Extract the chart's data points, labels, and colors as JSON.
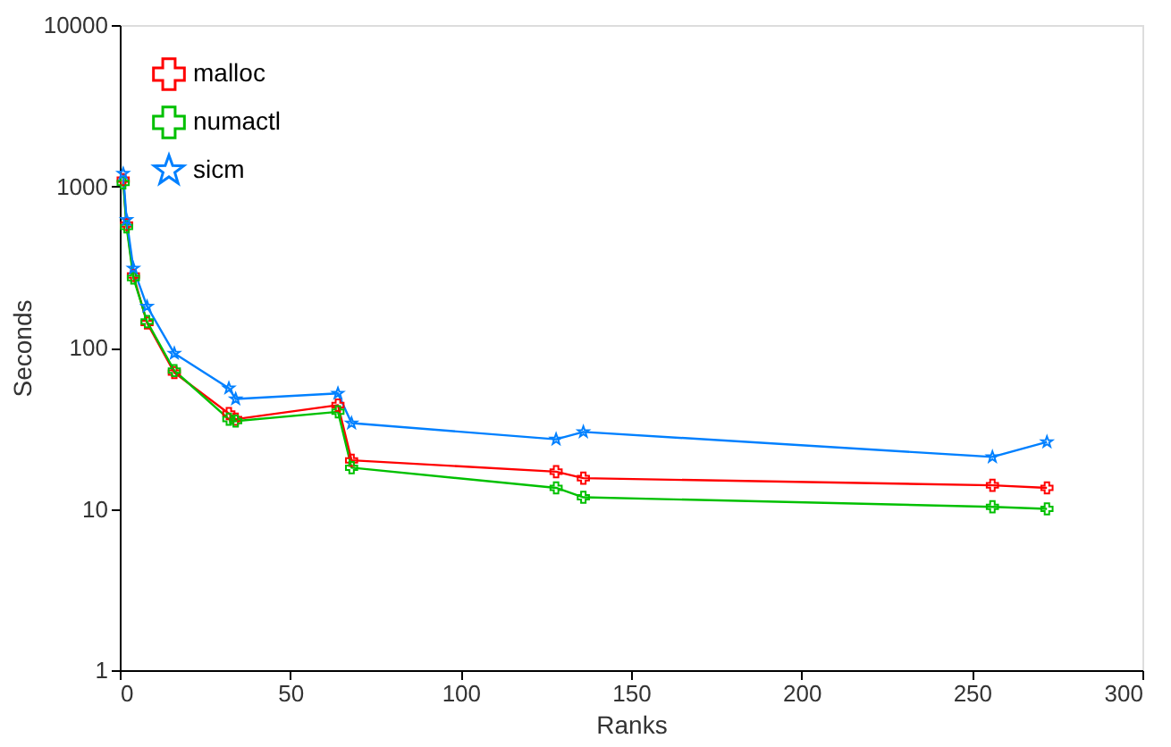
{
  "chart_data": {
    "type": "line",
    "xlabel": "Ranks",
    "ylabel": "Seconds",
    "x": [
      1,
      2,
      4,
      8,
      16,
      32,
      34,
      64,
      68,
      128,
      136,
      256,
      272
    ],
    "series": [
      {
        "name": "malloc",
        "color": "#ff0000",
        "marker": "cross",
        "values": [
          1100,
          580,
          280,
          142,
          70,
          39,
          36,
          44,
          20,
          17,
          15.5,
          14,
          13.5
        ]
      },
      {
        "name": "numactl",
        "color": "#00c000",
        "marker": "cross",
        "values": [
          1050,
          560,
          270,
          145,
          72,
          36,
          35,
          40,
          18,
          13.5,
          11.8,
          10.3,
          10
        ]
      },
      {
        "name": "sicm",
        "color": "#0080ff",
        "marker": "star",
        "values": [
          1200,
          620,
          310,
          180,
          92,
          56,
          48,
          52,
          34,
          27,
          30,
          21,
          26
        ]
      }
    ],
    "log": "y",
    "xlim": [
      0,
      300
    ],
    "xticks": [
      0,
      50,
      100,
      150,
      200,
      250,
      300
    ],
    "ylim": [
      1,
      10000
    ],
    "yticks": [
      1,
      10,
      100,
      1000,
      10000
    ],
    "grid": false,
    "legend": "top left",
    "line_style": "solid"
  }
}
